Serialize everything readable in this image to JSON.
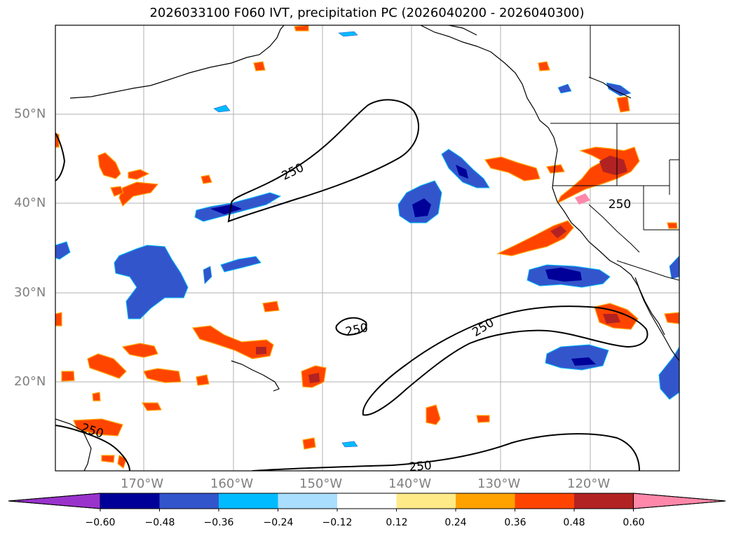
{
  "title": "2026033100 F060 IVT, precipitation PC (2026040200 - 2026040300)",
  "map": {
    "lat_labels": [
      "50°N",
      "40°N",
      "30°N",
      "20°N"
    ],
    "lon_labels": [
      "170°W",
      "160°W",
      "150°W",
      "140°W",
      "130°W",
      "120°W"
    ],
    "contour_label": "250",
    "contour_color": "#000000",
    "gridline_color": "#b0b0b0"
  },
  "colorbar": {
    "colors": [
      "#9933cc",
      "#000099",
      "#3355cc",
      "#00bbff",
      "#aadeff",
      "#ffffff",
      "#ffea88",
      "#ffa200",
      "#ff4400",
      "#b22222",
      "#ff88aa"
    ],
    "tick_labels": [
      "−0.60",
      "−0.48",
      "−0.36",
      "−0.24",
      "−0.12",
      "0.12",
      "0.24",
      "0.36",
      "0.48",
      "0.60"
    ]
  }
}
